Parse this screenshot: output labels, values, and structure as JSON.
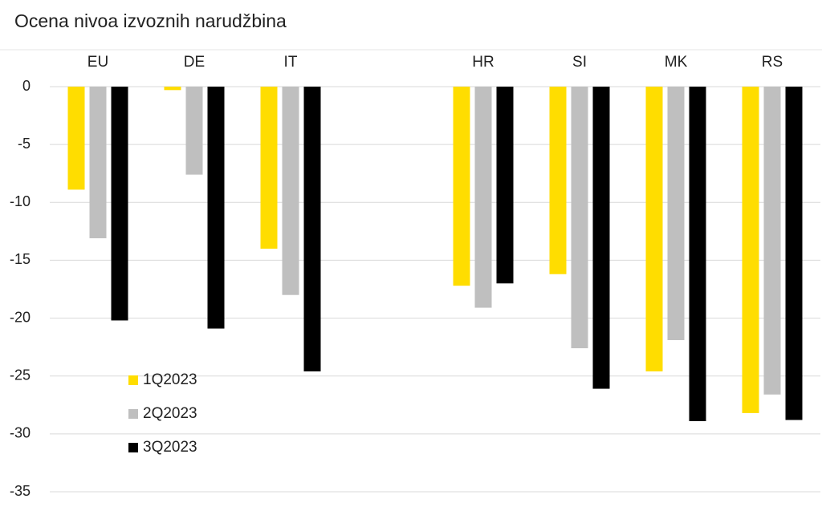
{
  "chart_data": {
    "type": "bar",
    "title": "Ocena nivoa izvoznih narudžbina",
    "categories": [
      "EU",
      "DE",
      "IT",
      null,
      "HR",
      "SI",
      "MK",
      "RS"
    ],
    "series": [
      {
        "name": "1Q2023",
        "color": "#ffdd00",
        "values": [
          -8.9,
          -0.3,
          -14.0,
          null,
          -17.2,
          -16.2,
          -24.6,
          -28.2
        ]
      },
      {
        "name": "2Q2023",
        "color": "#bfbfbf",
        "values": [
          -13.1,
          -7.6,
          -18.0,
          null,
          -19.1,
          -22.6,
          -21.9,
          -26.6
        ]
      },
      {
        "name": "3Q2023",
        "color": "#000000",
        "values": [
          -20.2,
          -20.9,
          -24.6,
          null,
          -17.0,
          -26.1,
          -28.9,
          -28.8
        ]
      }
    ],
    "ylim": [
      -35,
      0
    ],
    "yticks": [
      0,
      -5,
      -10,
      -15,
      -20,
      -25,
      -30,
      -35
    ],
    "grid": true
  }
}
